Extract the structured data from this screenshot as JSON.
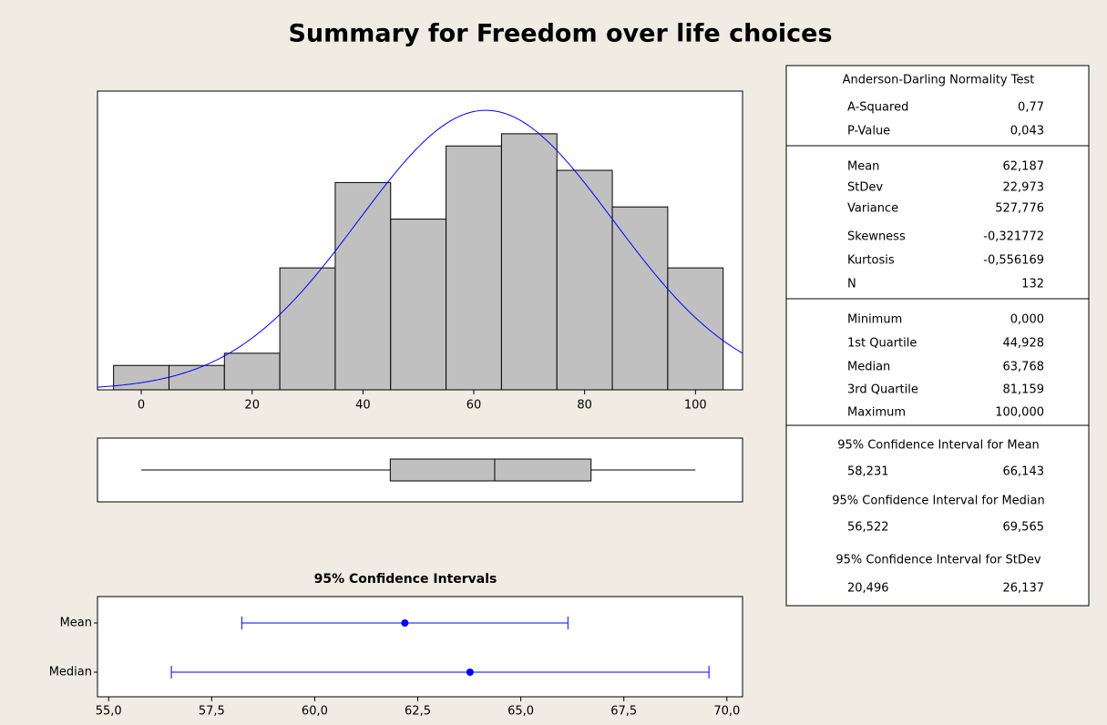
{
  "title": "Summary for Freedom over life choices",
  "chart_data": [
    {
      "type": "histogram",
      "bins": [
        -5,
        5,
        15,
        25,
        35,
        45,
        55,
        65,
        75,
        85,
        95,
        105
      ],
      "values": [
        2,
        2,
        3,
        10,
        17,
        14,
        20,
        21,
        18,
        15,
        10
      ],
      "xlim": [
        -7.9,
        108.5
      ],
      "xticks": [
        0,
        20,
        40,
        60,
        80,
        100
      ],
      "ylim": [
        0,
        24.5
      ],
      "color": "#c0c0c0",
      "curve_color": "#0000ff"
    },
    {
      "type": "boxplot",
      "xlim": [
        -7.9,
        108.5
      ],
      "color": "#c0c0c0"
    },
    {
      "type": "interval",
      "title": "95% Confidence Intervals",
      "categories": [
        "Mean",
        "Median"
      ],
      "xlim": [
        54.73,
        70.38
      ],
      "xticks": [
        {
          "value": 55,
          "label": "55,0"
        },
        {
          "value": 57.5,
          "label": "57,5"
        },
        {
          "value": 60,
          "label": "60,0"
        },
        {
          "value": 62.5,
          "label": "62,5"
        },
        {
          "value": 65,
          "label": "65,0"
        },
        {
          "value": 67.5,
          "label": "67,5"
        },
        {
          "value": 70,
          "label": "70,0"
        }
      ],
      "color": "#0000ff"
    }
  ],
  "stats": {
    "normality": {
      "title": "Anderson-Darling Normality Test",
      "rows": [
        {
          "name": "A-Squared",
          "value": 0.77,
          "label": "0,77"
        },
        {
          "name": "P-Value",
          "value": 0.043,
          "label": "0,043"
        }
      ]
    },
    "descriptive": {
      "rows": [
        {
          "name": "Mean",
          "value": 62.187,
          "label": "62,187"
        },
        {
          "name": "StDev",
          "value": 22.973,
          "label": "22,973"
        },
        {
          "name": "Variance",
          "value": 527.776,
          "label": "527,776"
        },
        {
          "name": "Skewness",
          "value": -0.321772,
          "label": "-0,321772"
        },
        {
          "name": "Kurtosis",
          "value": -0.556169,
          "label": "-0,556169"
        },
        {
          "name": "N",
          "value": 132
        }
      ]
    },
    "quantiles": {
      "rows": [
        {
          "name": "Minimum",
          "value": 0,
          "label": "0,000"
        },
        {
          "name": "1st Quartile",
          "value": 44.928,
          "label": "44,928"
        },
        {
          "name": "Median",
          "value": 63.768,
          "label": "63,768"
        },
        {
          "name": "3rd Quartile",
          "value": 81.159,
          "label": "81,159"
        },
        {
          "name": "Maximum",
          "value": 100,
          "label": "100,000"
        }
      ]
    },
    "intervals": [
      {
        "title": "95% Confidence Interval for Mean",
        "lower": 58.231,
        "lower_label": "58,231",
        "upper": 66.143,
        "upper_label": "66,143"
      },
      {
        "title": "95% Confidence Interval for Median",
        "lower": 56.522,
        "lower_label": "56,522",
        "upper": 69.565,
        "upper_label": "69,565"
      },
      {
        "title": "95% Confidence Interval for StDev",
        "lower": 20.496,
        "lower_label": "20,496",
        "upper": 26.137,
        "upper_label": "26,137"
      }
    ]
  }
}
